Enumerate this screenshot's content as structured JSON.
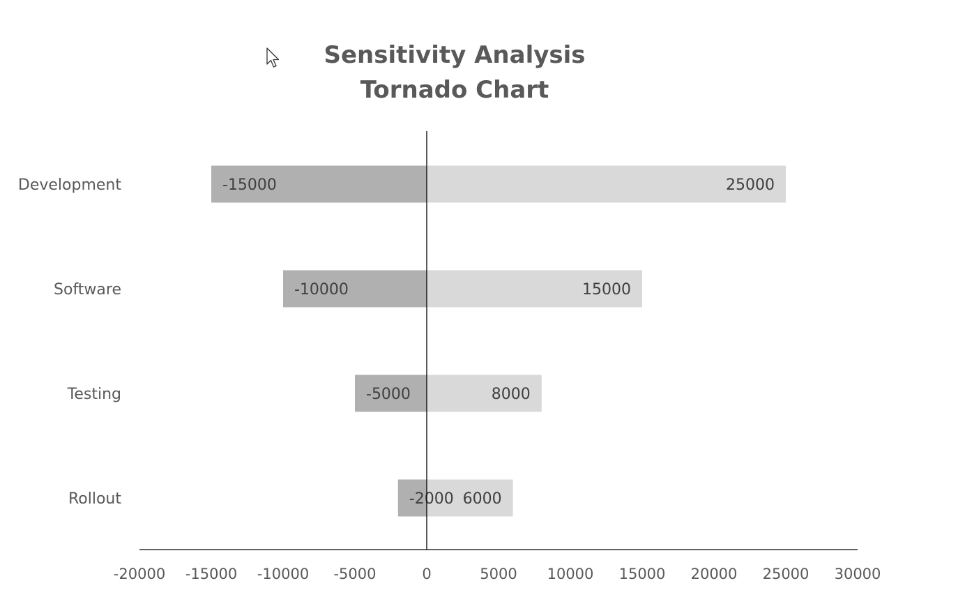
{
  "chart_data": {
    "type": "bar",
    "orientation": "horizontal",
    "title": [
      "Sensitivity Analysis",
      "Tornado Chart"
    ],
    "xlabel": "",
    "ylabel": "",
    "categories": [
      "Development",
      "Software",
      "Testing",
      "Rollout"
    ],
    "series": [
      {
        "values": [
          -15000,
          -10000,
          -5000,
          -2000
        ],
        "color": "#b0b0b0"
      },
      {
        "values": [
          25000,
          15000,
          8000,
          6000
        ],
        "color": "#d9d9d9"
      }
    ],
    "xlim": [
      -20000,
      30000
    ],
    "xticks": [
      "-20000",
      "-15000",
      "-10000",
      "-5000",
      "0",
      "5000",
      "10000",
      "15000",
      "20000",
      "25000",
      "30000"
    ],
    "xtick_values": [
      -20000,
      -15000,
      -10000,
      -5000,
      0,
      5000,
      10000,
      15000,
      20000,
      25000,
      30000
    ],
    "grid": false,
    "legend": "none",
    "colors": {
      "text": "#595959",
      "axis": "#000000",
      "data_label": "#404040"
    }
  },
  "pointer": {
    "icon": "mouse-pointer-icon"
  }
}
